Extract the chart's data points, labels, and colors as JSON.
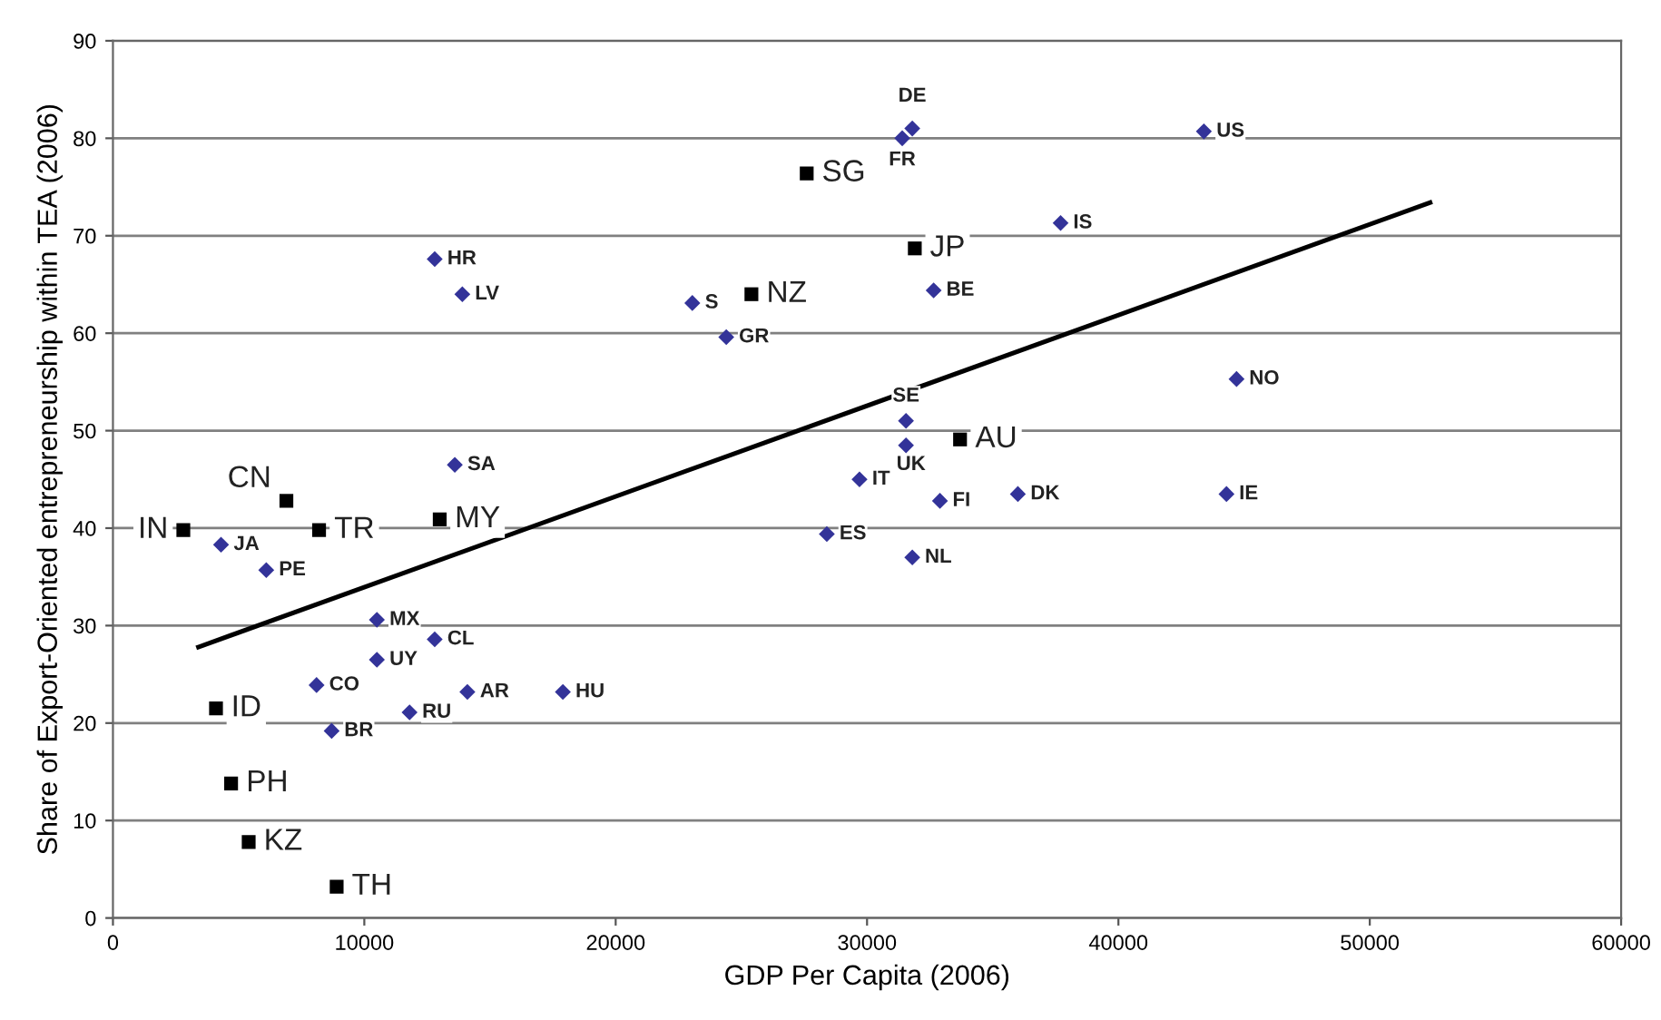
{
  "chart_data": {
    "type": "scatter",
    "xlabel": "GDP Per Capita (2006)",
    "ylabel": "Share of Export-Oriented entrepreneurship within TEA (2006)",
    "xlim": [
      0,
      60000
    ],
    "ylim": [
      0,
      90
    ],
    "xticks": [
      0,
      10000,
      20000,
      30000,
      40000,
      50000,
      60000
    ],
    "yticks": [
      0,
      10,
      20,
      30,
      40,
      50,
      60,
      70,
      80,
      90
    ],
    "grid": "y",
    "series": [
      {
        "marker": "diamond",
        "color": "#333399",
        "x": [
          31800,
          31400,
          43400,
          37700,
          12800,
          13900,
          23050,
          24400,
          32650,
          31550,
          31550,
          44700,
          13600,
          29700,
          32900,
          36000,
          44300,
          28400,
          31800,
          4300,
          6100,
          10500,
          12800,
          10500,
          8100,
          14100,
          17900,
          11800,
          8700
        ],
        "values": [
          81,
          80,
          80.7,
          71.3,
          67.6,
          64,
          63.1,
          59.6,
          64.4,
          51,
          48.5,
          55.3,
          46.5,
          45,
          42.8,
          43.5,
          43.5,
          39.4,
          37,
          38.3,
          35.7,
          30.6,
          28.6,
          26.5,
          23.9,
          23.2,
          23.2,
          21.1,
          19.2
        ]
      },
      {
        "marker": "square",
        "color": "#000000",
        "x": [
          27600,
          31900,
          25400,
          33700,
          6900,
          2800,
          8200,
          13000,
          4100,
          4700,
          5400,
          8900
        ],
        "values": [
          76.4,
          68.7,
          64,
          49.1,
          42.8,
          39.8,
          39.8,
          40.9,
          21.5,
          13.8,
          7.8,
          3.2
        ]
      },
      {
        "type": "line",
        "color": "#000000",
        "x": [
          3400,
          52400
        ],
        "values": [
          27.8,
          73.4
        ]
      }
    ],
    "annotations": [
      {
        "text": "DE",
        "x": 31800,
        "y": 81
      },
      {
        "text": "FR",
        "x": 31400,
        "y": 80
      },
      {
        "text": "US",
        "x": 43400,
        "y": 80.7
      },
      {
        "text": "IS",
        "x": 37700,
        "y": 71.3
      },
      {
        "text": "HR",
        "x": 12800,
        "y": 67.6
      },
      {
        "text": "LV",
        "x": 13900,
        "y": 64
      },
      {
        "text": "S",
        "x": 23050,
        "y": 63.1
      },
      {
        "text": "GR",
        "x": 24400,
        "y": 59.6
      },
      {
        "text": "BE",
        "x": 32650,
        "y": 64.4
      },
      {
        "text": "SE",
        "x": 31550,
        "y": 51
      },
      {
        "text": "UK",
        "x": 31550,
        "y": 48.5
      },
      {
        "text": "NO",
        "x": 44700,
        "y": 55.3
      },
      {
        "text": "SA",
        "x": 13600,
        "y": 46.5
      },
      {
        "text": "IT",
        "x": 29700,
        "y": 45
      },
      {
        "text": "FI",
        "x": 32900,
        "y": 42.8
      },
      {
        "text": "DK",
        "x": 36000,
        "y": 43.5
      },
      {
        "text": "IE",
        "x": 44300,
        "y": 43.5
      },
      {
        "text": "ES",
        "x": 28400,
        "y": 39.4
      },
      {
        "text": "NL",
        "x": 31800,
        "y": 37
      },
      {
        "text": "JA",
        "x": 4300,
        "y": 38.3
      },
      {
        "text": "PE",
        "x": 6100,
        "y": 35.7
      },
      {
        "text": "MX",
        "x": 10500,
        "y": 30.6
      },
      {
        "text": "CL",
        "x": 12800,
        "y": 28.6
      },
      {
        "text": "UY",
        "x": 10500,
        "y": 26.5
      },
      {
        "text": "CO",
        "x": 8100,
        "y": 23.9
      },
      {
        "text": "AR",
        "x": 14100,
        "y": 23.2
      },
      {
        "text": "HU",
        "x": 17900,
        "y": 23.2
      },
      {
        "text": "RU",
        "x": 11800,
        "y": 21.1
      },
      {
        "text": "BR",
        "x": 8700,
        "y": 19.2
      },
      {
        "text": "SG",
        "x": 27600,
        "y": 76.4
      },
      {
        "text": "JP",
        "x": 31900,
        "y": 68.7
      },
      {
        "text": "NZ",
        "x": 25400,
        "y": 64
      },
      {
        "text": "AU",
        "x": 33700,
        "y": 49.1
      },
      {
        "text": "CN",
        "x": 6900,
        "y": 42.8
      },
      {
        "text": "IN",
        "x": 2800,
        "y": 39.8
      },
      {
        "text": "TR",
        "x": 8200,
        "y": 39.8
      },
      {
        "text": "MY",
        "x": 13000,
        "y": 40.9
      },
      {
        "text": "ID",
        "x": 4100,
        "y": 21.5
      },
      {
        "text": "PH",
        "x": 4700,
        "y": 13.8
      },
      {
        "text": "KZ",
        "x": 5400,
        "y": 7.8
      },
      {
        "text": "TH",
        "x": 8900,
        "y": 3.2
      }
    ]
  }
}
